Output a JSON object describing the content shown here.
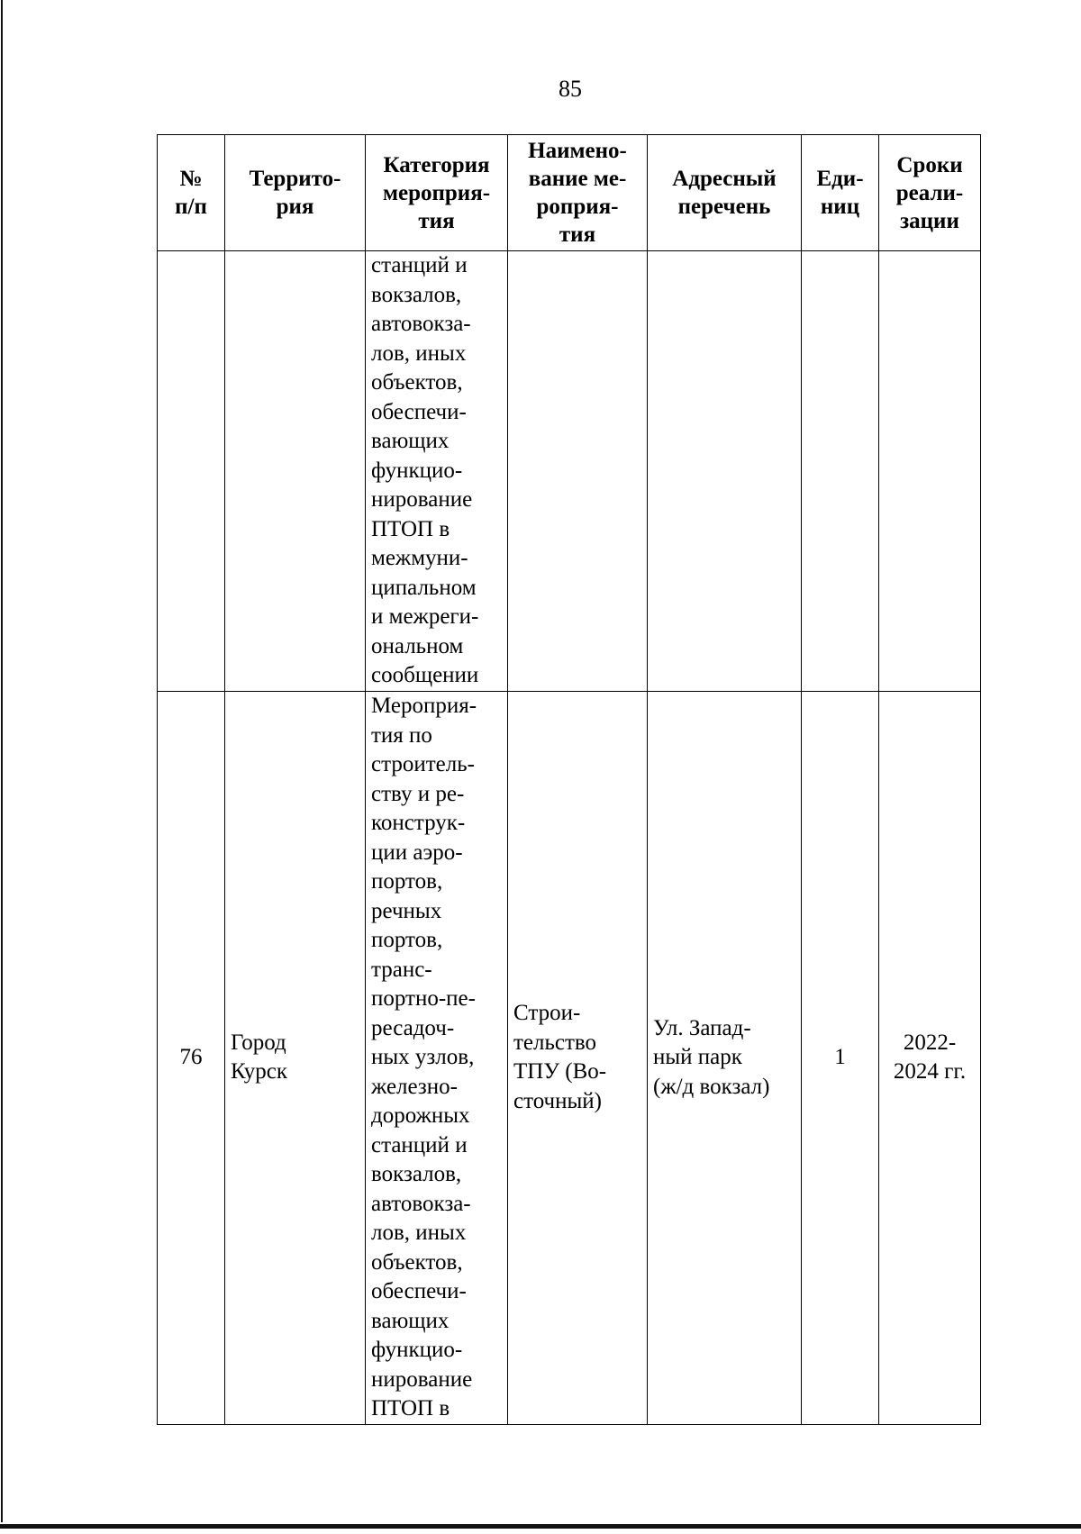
{
  "page_number": "85",
  "table": {
    "headers": [
      "№\nп/п",
      "Террито-\nрия",
      "Категория\nмероприя-\nтия",
      "Наимено-\nвание ме-\nроприя-\nтия",
      "Адресный\nперечень",
      "Еди-\nниц",
      "Сроки\nреали-\nзации"
    ],
    "rows": [
      {
        "num": "",
        "territory": "",
        "category": "станций и\nвокзалов,\nавтовокза-\nлов, иных\nобъектов,\nобеспечи-\nвающих\nфункцио-\nнирование\nПТОП в\nмежмуни-\nципальном\nи межреги-\nональном\nсообщении",
        "name": "",
        "address": "",
        "units": "",
        "period": ""
      },
      {
        "num": "76",
        "territory": "Город\nКурск",
        "category": "Мероприя-\nтия по\nстроитель-\nству и ре-\nконструк-\nции аэро-\nпортов,\nречных\nпортов,\nтранс-\nпортно-пе-\nресадоч-\nных узлов,\nжелезно-\nдорожных\nстанций и\nвокзалов,\nавтовокза-\nлов, иных\nобъектов,\nобеспечи-\nвающих\nфункцио-\nнирование\nПТОП в",
        "name": "Строи-\nтельство\nТПУ (Во-\nсточный)",
        "address": "Ул. Запад-\nный парк\n(ж/д вокзал)",
        "units": "1",
        "period": "2022-\n2024 гг."
      }
    ]
  }
}
